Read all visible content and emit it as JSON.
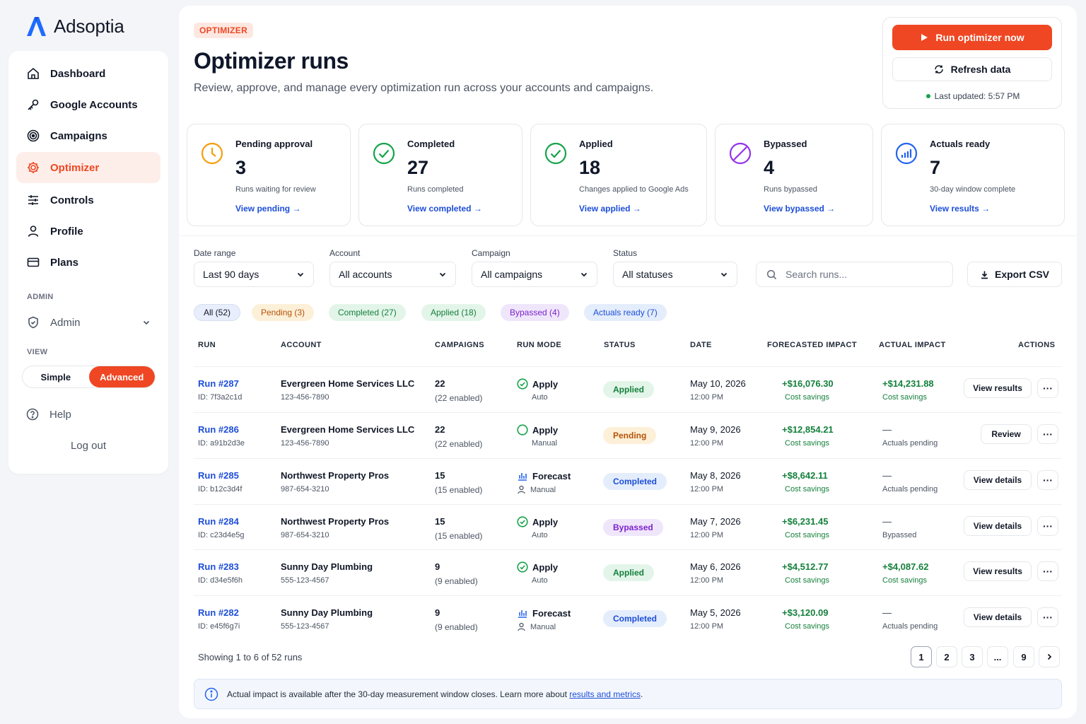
{
  "brand": {
    "name": "Adsoptia",
    "accent": "#ef4723",
    "logo_blue": "#1e6bff"
  },
  "nav": {
    "items": [
      {
        "label": "Dashboard",
        "icon": "home-icon"
      },
      {
        "label": "Google Accounts",
        "icon": "key-icon"
      },
      {
        "label": "Campaigns",
        "icon": "target-icon"
      },
      {
        "label": "Optimizer",
        "icon": "gear-icon",
        "active": true
      },
      {
        "label": "Controls",
        "icon": "sliders-icon"
      },
      {
        "label": "Profile",
        "icon": "user-icon"
      },
      {
        "label": "Plans",
        "icon": "card-icon"
      }
    ],
    "admin_section": "ADMIN",
    "admin_label": "Admin",
    "view_section": "VIEW",
    "view_simple": "Simple",
    "view_advanced": "Advanced",
    "help": "Help",
    "logout": "Log out"
  },
  "header": {
    "eyebrow": "OPTIMIZER",
    "title": "Optimizer runs",
    "subtitle": "Review, approve, and manage every optimization run across your accounts and campaigns.",
    "run_now": "Run optimizer now",
    "refresh": "Refresh data",
    "last_updated": "Last updated: 5:57 PM"
  },
  "stats": [
    {
      "label": "Pending approval",
      "value": "3",
      "desc": "Runs waiting for review",
      "link": "View pending",
      "color": "#f59e0b",
      "icon": "clock-icon"
    },
    {
      "label": "Completed",
      "value": "27",
      "desc": "Runs completed",
      "link": "View completed",
      "color": "#16a34a",
      "icon": "check-circle-icon"
    },
    {
      "label": "Applied",
      "value": "18",
      "desc": "Changes applied to Google Ads",
      "link": "View applied",
      "color": "#16a34a",
      "icon": "check-circle-icon"
    },
    {
      "label": "Bypassed",
      "value": "4",
      "desc": "Runs bypassed",
      "link": "View bypassed",
      "color": "#9333ea",
      "icon": "ban-icon"
    },
    {
      "label": "Actuals ready",
      "value": "7",
      "desc": "30-day window complete",
      "link": "View results",
      "color": "#2563eb",
      "icon": "chart-icon"
    }
  ],
  "filters": {
    "date_label": "Date range",
    "date_value": "Last 90 days",
    "account_label": "Account",
    "account_value": "All accounts",
    "campaign_label": "Campaign",
    "campaign_value": "All campaigns",
    "status_label": "Status",
    "status_value": "All statuses",
    "search_placeholder": "Search runs...",
    "export": "Export CSV"
  },
  "chips": [
    {
      "label": "All (52)",
      "bg": "#e8eefb",
      "fg": "#111827"
    },
    {
      "label": "Pending (3)",
      "bg": "#fdf0d8",
      "fg": "#b45309"
    },
    {
      "label": "Completed (27)",
      "bg": "#e3f5e9",
      "fg": "#15803d"
    },
    {
      "label": "Applied (18)",
      "bg": "#e3f5e9",
      "fg": "#15803d"
    },
    {
      "label": "Bypassed (4)",
      "bg": "#efe6fb",
      "fg": "#7e22ce"
    },
    {
      "label": "Actuals ready (7)",
      "bg": "#e4edfb",
      "fg": "#1d4ed8"
    }
  ],
  "table": {
    "headers": [
      "RUN",
      "ACCOUNT",
      "CAMPAIGNS",
      "RUN MODE",
      "STATUS",
      "DATE",
      "FORECASTED IMPACT",
      "ACTUAL IMPACT",
      "ACTIONS"
    ],
    "rows": [
      {
        "run": "Run #287",
        "id": "ID: 7f3a2c1d",
        "account": "Evergreen Home Services LLC",
        "phone": "123-456-7890",
        "campaigns": "22",
        "enabled": "(22 enabled)",
        "mode": "Apply",
        "mode_icon": "check-circle-icon",
        "submode": "Auto",
        "status": "Applied",
        "date": "May 10, 2026",
        "time": "12:00 PM",
        "forecast": "+$16,076.30",
        "forecast_sub": "Cost savings",
        "actual": "+$14,231.88",
        "actual_sub": "Cost savings",
        "action": "View results"
      },
      {
        "run": "Run #286",
        "id": "ID: a91b2d3e",
        "account": "Evergreen Home Services LLC",
        "phone": "123-456-7890",
        "campaigns": "22",
        "enabled": "(22 enabled)",
        "mode": "Apply",
        "mode_icon": "circle-icon",
        "submode": "Manual",
        "status": "Pending",
        "date": "May 9, 2026",
        "time": "12:00 PM",
        "forecast": "+$12,854.21",
        "forecast_sub": "Cost savings",
        "actual": "—",
        "actual_sub": "Actuals pending",
        "action": "Review"
      },
      {
        "run": "Run #285",
        "id": "ID: b12c3d4f",
        "account": "Northwest Property Pros",
        "phone": "987-654-3210",
        "campaigns": "15",
        "enabled": "(15 enabled)",
        "mode": "Forecast",
        "mode_icon": "bar-chart-icon",
        "submode": "Manual",
        "status": "Completed",
        "date": "May 8, 2026",
        "time": "12:00 PM",
        "forecast": "+$8,642.11",
        "forecast_sub": "Cost savings",
        "actual": "—",
        "actual_sub": "Actuals pending",
        "action": "View details"
      },
      {
        "run": "Run #284",
        "id": "ID: c23d4e5g",
        "account": "Northwest Property Pros",
        "phone": "987-654-3210",
        "campaigns": "15",
        "enabled": "(15 enabled)",
        "mode": "Apply",
        "mode_icon": "check-circle-icon",
        "submode": "Auto",
        "status": "Bypassed",
        "date": "May 7, 2026",
        "time": "12:00 PM",
        "forecast": "+$6,231.45",
        "forecast_sub": "Cost savings",
        "actual": "—",
        "actual_sub": "Bypassed",
        "action": "View details"
      },
      {
        "run": "Run #283",
        "id": "ID: d34e5f6h",
        "account": "Sunny Day Plumbing",
        "phone": "555-123-4567",
        "campaigns": "9",
        "enabled": "(9 enabled)",
        "mode": "Apply",
        "mode_icon": "check-circle-icon",
        "submode": "Auto",
        "status": "Applied",
        "date": "May 6, 2026",
        "time": "12:00 PM",
        "forecast": "+$4,512.77",
        "forecast_sub": "Cost savings",
        "actual": "+$4,087.62",
        "actual_sub": "Cost savings",
        "action": "View results"
      },
      {
        "run": "Run #282",
        "id": "ID: e45f6g7i",
        "account": "Sunny Day Plumbing",
        "phone": "555-123-4567",
        "campaigns": "9",
        "enabled": "(9 enabled)",
        "mode": "Forecast",
        "mode_icon": "bar-chart-icon",
        "submode": "Manual",
        "status": "Completed",
        "date": "May 5, 2026",
        "time": "12:00 PM",
        "forecast": "+$3,120.09",
        "forecast_sub": "Cost savings",
        "actual": "—",
        "actual_sub": "Actuals pending",
        "action": "View details"
      }
    ]
  },
  "status_colors": {
    "Applied": {
      "bg": "#e3f5e9",
      "fg": "#15803d"
    },
    "Pending": {
      "bg": "#fdf0d8",
      "fg": "#b45309"
    },
    "Completed": {
      "bg": "#e4edfb",
      "fg": "#1d4ed8"
    },
    "Bypassed": {
      "bg": "#efe6fb",
      "fg": "#7e22ce"
    }
  },
  "pagination": {
    "showing": "Showing 1 to 6 of 52 runs",
    "pages": [
      "1",
      "2",
      "3",
      "...",
      "9"
    ],
    "next": "›"
  },
  "footer_note": {
    "text": "Actual impact is available after the 30-day measurement window closes. Learn more about ",
    "link": "results and metrics",
    "end": "."
  }
}
